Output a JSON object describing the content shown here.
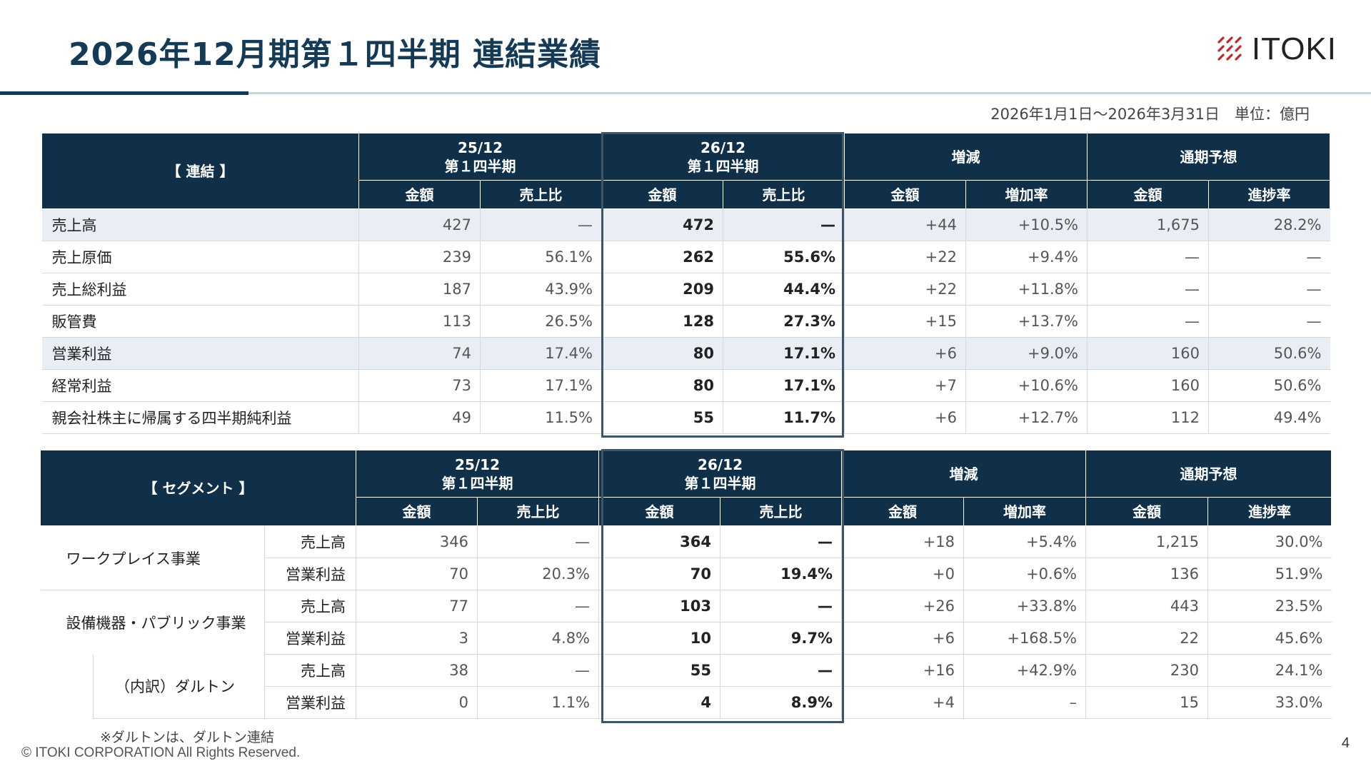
{
  "title": "2026年12月期第１四半期 連結業績",
  "logo": {
    "text": "ITOKI",
    "icon": "itoki-logo-icon",
    "color": "#c1272d"
  },
  "period_unit": "2026年1月1日～2026年3月31日　単位：億円",
  "consolidated": {
    "header": {
      "label": "【 連結 】",
      "prev_l1": "25/12",
      "prev_l2": "第１四半期",
      "cur_l1": "26/12",
      "cur_l2": "第１四半期",
      "change": "増減",
      "forecast": "通期予想",
      "amount": "金額",
      "ratio": "売上比",
      "growth": "増加率",
      "progress": "進捗率"
    },
    "rows": [
      {
        "label": "売上高",
        "prev_amt": "427",
        "prev_ratio": "—",
        "cur_amt": "472",
        "cur_ratio": "—",
        "chg_amt": "+44",
        "chg_rate": "+10.5%",
        "fc_amt": "1,675",
        "fc_prog": "28.2%"
      },
      {
        "label": "売上原価",
        "prev_amt": "239",
        "prev_ratio": "56.1%",
        "cur_amt": "262",
        "cur_ratio": "55.6%",
        "chg_amt": "+22",
        "chg_rate": "+9.4%",
        "fc_amt": "—",
        "fc_prog": "—"
      },
      {
        "label": "売上総利益",
        "prev_amt": "187",
        "prev_ratio": "43.9%",
        "cur_amt": "209",
        "cur_ratio": "44.4%",
        "chg_amt": "+22",
        "chg_rate": "+11.8%",
        "fc_amt": "—",
        "fc_prog": "—"
      },
      {
        "label": "販管費",
        "prev_amt": "113",
        "prev_ratio": "26.5%",
        "cur_amt": "128",
        "cur_ratio": "27.3%",
        "chg_amt": "+15",
        "chg_rate": "+13.7%",
        "fc_amt": "—",
        "fc_prog": "—"
      },
      {
        "label": "営業利益",
        "prev_amt": "74",
        "prev_ratio": "17.4%",
        "cur_amt": "80",
        "cur_ratio": "17.1%",
        "chg_amt": "+6",
        "chg_rate": "+9.0%",
        "fc_amt": "160",
        "fc_prog": "50.6%"
      },
      {
        "label": "経常利益",
        "prev_amt": "73",
        "prev_ratio": "17.1%",
        "cur_amt": "80",
        "cur_ratio": "17.1%",
        "chg_amt": "+7",
        "chg_rate": "+10.6%",
        "fc_amt": "160",
        "fc_prog": "50.6%"
      },
      {
        "label": "親会社株主に帰属する四半期純利益",
        "prev_amt": "49",
        "prev_ratio": "11.5%",
        "cur_amt": "55",
        "cur_ratio": "11.7%",
        "chg_amt": "+6",
        "chg_rate": "+12.7%",
        "fc_amt": "112",
        "fc_prog": "49.4%"
      }
    ]
  },
  "segment": {
    "header": {
      "label": "【 セグメント 】",
      "prev_l1": "25/12",
      "prev_l2": "第１四半期",
      "cur_l1": "26/12",
      "cur_l2": "第１四半期",
      "change": "増減",
      "forecast": "通期予想",
      "amount": "金額",
      "ratio": "売上比",
      "growth": "増加率",
      "progress": "進捗率"
    },
    "groups": [
      {
        "name": "ワークプレイス事業",
        "rows": [
          {
            "label": "売上高",
            "prev_amt": "346",
            "prev_ratio": "—",
            "cur_amt": "364",
            "cur_ratio": "—",
            "chg_amt": "+18",
            "chg_rate": "+5.4%",
            "fc_amt": "1,215",
            "fc_prog": "30.0%"
          },
          {
            "label": "営業利益",
            "prev_amt": "70",
            "prev_ratio": "20.3%",
            "cur_amt": "70",
            "cur_ratio": "19.4%",
            "chg_amt": "+0",
            "chg_rate": "+0.6%",
            "fc_amt": "136",
            "fc_prog": "51.9%"
          }
        ]
      },
      {
        "name": "設備機器・パブリック事業",
        "rows": [
          {
            "label": "売上高",
            "prev_amt": "77",
            "prev_ratio": "—",
            "cur_amt": "103",
            "cur_ratio": "—",
            "chg_amt": "+26",
            "chg_rate": "+33.8%",
            "fc_amt": "443",
            "fc_prog": "23.5%"
          },
          {
            "label": "営業利益",
            "prev_amt": "3",
            "prev_ratio": "4.8%",
            "cur_amt": "10",
            "cur_ratio": "9.7%",
            "chg_amt": "+6",
            "chg_rate": "+168.5%",
            "fc_amt": "22",
            "fc_prog": "45.6%"
          }
        ]
      },
      {
        "name": "（内訳）ダルトン",
        "rows": [
          {
            "label": "売上高",
            "prev_amt": "38",
            "prev_ratio": "—",
            "cur_amt": "55",
            "cur_ratio": "—",
            "chg_amt": "+16",
            "chg_rate": "+42.9%",
            "fc_amt": "230",
            "fc_prog": "24.1%"
          },
          {
            "label": "営業利益",
            "prev_amt": "0",
            "prev_ratio": "1.1%",
            "cur_amt": "4",
            "cur_ratio": "8.9%",
            "chg_amt": "+4",
            "chg_rate": "–",
            "fc_amt": "15",
            "fc_prog": "33.0%"
          }
        ]
      }
    ]
  },
  "note": "※ダルトンは、ダルトン連結",
  "copyright": "© ITOKI CORPORATION All Rights Reserved.",
  "page_number": "4"
}
